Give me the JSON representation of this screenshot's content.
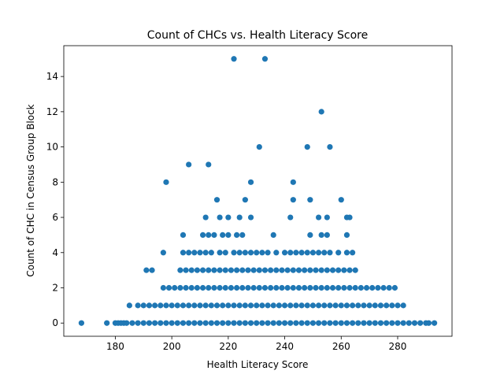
{
  "chart_data": {
    "type": "scatter",
    "title": "Count of CHCs vs. Health Literacy Score",
    "x_label": "Health Literacy Score",
    "y_label": "Count of CHC in Census Group Block",
    "color": "#1f77b4",
    "xlim": [
      161.75,
      299.25
    ],
    "ylim": [
      -0.75,
      15.75
    ],
    "xticks": [
      180,
      200,
      220,
      240,
      260,
      280
    ],
    "yticks": [
      0,
      2,
      4,
      6,
      8,
      10,
      12,
      14
    ],
    "x": [
      168,
      177,
      180,
      181,
      183,
      182,
      184,
      186,
      188,
      190,
      192,
      194,
      196,
      198,
      200,
      202,
      204,
      206,
      208,
      210,
      212,
      214,
      216,
      218,
      220,
      222,
      224,
      226,
      228,
      230,
      232,
      234,
      236,
      238,
      240,
      242,
      244,
      246,
      248,
      250,
      252,
      254,
      256,
      258,
      260,
      262,
      264,
      266,
      268,
      270,
      272,
      274,
      276,
      278,
      280,
      282,
      284,
      286,
      288,
      290,
      291,
      293,
      185,
      188,
      190,
      192,
      194,
      196,
      198,
      200,
      202,
      204,
      206,
      208,
      210,
      212,
      214,
      216,
      218,
      220,
      222,
      224,
      226,
      228,
      230,
      232,
      234,
      236,
      238,
      240,
      242,
      244,
      246,
      248,
      250,
      252,
      254,
      256,
      258,
      260,
      262,
      264,
      266,
      268,
      270,
      272,
      274,
      276,
      278,
      280,
      282,
      197,
      199,
      201,
      203,
      205,
      207,
      209,
      211,
      213,
      215,
      217,
      219,
      221,
      223,
      225,
      227,
      229,
      231,
      233,
      235,
      237,
      239,
      241,
      243,
      245,
      247,
      249,
      251,
      253,
      255,
      257,
      259,
      261,
      263,
      265,
      267,
      269,
      271,
      273,
      275,
      277,
      279,
      191,
      193,
      203,
      205,
      207,
      209,
      211,
      213,
      215,
      217,
      219,
      221,
      223,
      225,
      227,
      229,
      231,
      233,
      235,
      237,
      239,
      241,
      243,
      245,
      247,
      249,
      251,
      253,
      255,
      257,
      259,
      261,
      263,
      265,
      197,
      204,
      206,
      208,
      210,
      212,
      214,
      217,
      219,
      222,
      224,
      226,
      228,
      230,
      232,
      234,
      237,
      240,
      242,
      244,
      246,
      248,
      250,
      252,
      254,
      256,
      259,
      262,
      264,
      204,
      211,
      213,
      215,
      218,
      220,
      223,
      225,
      236,
      249,
      253,
      255,
      262,
      212,
      217,
      220,
      224,
      228,
      242,
      252,
      255,
      262,
      263,
      216,
      226,
      243,
      249,
      260,
      198,
      228,
      243,
      206,
      213,
      231,
      248,
      256,
      253,
      222,
      233
    ],
    "values": [
      0,
      0,
      0,
      0,
      0,
      0,
      0,
      0,
      0,
      0,
      0,
      0,
      0,
      0,
      0,
      0,
      0,
      0,
      0,
      0,
      0,
      0,
      0,
      0,
      0,
      0,
      0,
      0,
      0,
      0,
      0,
      0,
      0,
      0,
      0,
      0,
      0,
      0,
      0,
      0,
      0,
      0,
      0,
      0,
      0,
      0,
      0,
      0,
      0,
      0,
      0,
      0,
      0,
      0,
      0,
      0,
      0,
      0,
      0,
      0,
      0,
      0,
      1,
      1,
      1,
      1,
      1,
      1,
      1,
      1,
      1,
      1,
      1,
      1,
      1,
      1,
      1,
      1,
      1,
      1,
      1,
      1,
      1,
      1,
      1,
      1,
      1,
      1,
      1,
      1,
      1,
      1,
      1,
      1,
      1,
      1,
      1,
      1,
      1,
      1,
      1,
      1,
      1,
      1,
      1,
      1,
      1,
      1,
      1,
      1,
      1,
      2,
      2,
      2,
      2,
      2,
      2,
      2,
      2,
      2,
      2,
      2,
      2,
      2,
      2,
      2,
      2,
      2,
      2,
      2,
      2,
      2,
      2,
      2,
      2,
      2,
      2,
      2,
      2,
      2,
      2,
      2,
      2,
      2,
      2,
      2,
      2,
      2,
      2,
      2,
      2,
      2,
      2,
      3,
      3,
      3,
      3,
      3,
      3,
      3,
      3,
      3,
      3,
      3,
      3,
      3,
      3,
      3,
      3,
      3,
      3,
      3,
      3,
      3,
      3,
      3,
      3,
      3,
      3,
      3,
      3,
      3,
      3,
      3,
      3,
      3,
      3,
      4,
      4,
      4,
      4,
      4,
      4,
      4,
      4,
      4,
      4,
      4,
      4,
      4,
      4,
      4,
      4,
      4,
      4,
      4,
      4,
      4,
      4,
      4,
      4,
      4,
      4,
      4,
      4,
      4,
      5,
      5,
      5,
      5,
      5,
      5,
      5,
      5,
      5,
      5,
      5,
      5,
      5,
      6,
      6,
      6,
      6,
      6,
      6,
      6,
      6,
      6,
      6,
      7,
      7,
      7,
      7,
      7,
      8,
      8,
      8,
      9,
      9,
      10,
      10,
      10,
      12,
      15,
      15
    ]
  }
}
